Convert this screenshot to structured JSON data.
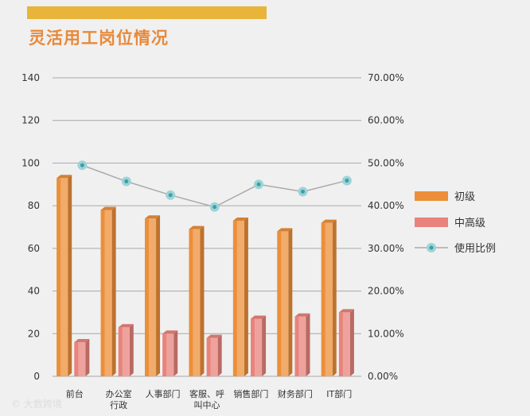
{
  "colors": {
    "accent": "#e8b43a",
    "title": "#e8893a",
    "primary": "#ec8f3a",
    "senior": "#e8837c",
    "line": "#aaaaaa",
    "marker": "#9fd3d6",
    "marker_center": "#3aa0a8",
    "grid": "#a8a8a8",
    "text": "#333333"
  },
  "header": {
    "title": "灵活用工岗位情况"
  },
  "watermark": {
    "text": "© 大数跨境"
  },
  "chart_data": {
    "type": "bar",
    "title": "灵活用工岗位情况",
    "categories": [
      "前台",
      "办公室\n行政",
      "人事部门",
      "客服、呼\n叫中心",
      "销售部门",
      "财务部门",
      "IT部门"
    ],
    "series": [
      {
        "name": "初级",
        "type": "bar",
        "axis": "left",
        "values": [
          93,
          78,
          74,
          69,
          73,
          68,
          72
        ]
      },
      {
        "name": "中高级",
        "type": "bar",
        "axis": "left",
        "values": [
          16,
          23,
          20,
          18,
          27,
          28,
          30
        ]
      },
      {
        "name": "使用比例",
        "type": "line",
        "axis": "right",
        "values": [
          0.495,
          0.457,
          0.425,
          0.397,
          0.45,
          0.433,
          0.459
        ]
      }
    ],
    "y_left": {
      "min": 0,
      "max": 140,
      "ticks": [
        "0",
        "20",
        "40",
        "60",
        "80",
        "100",
        "120",
        "140"
      ]
    },
    "y_right": {
      "min": 0,
      "max": 0.7,
      "ticks": [
        "0.00%",
        "10.00%",
        "20.00%",
        "30.00%",
        "40.00%",
        "50.00%",
        "60.00%",
        "70.00%"
      ]
    },
    "grid": true,
    "legend_position": "right",
    "legend": [
      "初级",
      "中高级",
      "使用比例"
    ]
  }
}
